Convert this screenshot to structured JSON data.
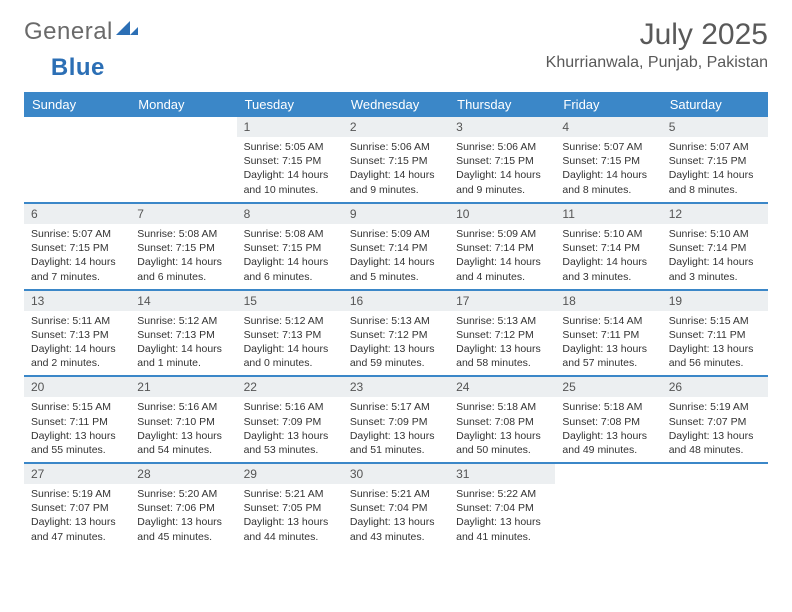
{
  "brand": {
    "part1": "General",
    "part2": "Blue"
  },
  "title": "July 2025",
  "location": "Khurrianwala, Punjab, Pakistan",
  "dayHeaders": [
    "Sunday",
    "Monday",
    "Tuesday",
    "Wednesday",
    "Thursday",
    "Friday",
    "Saturday"
  ],
  "colors": {
    "header_bg": "#3b87c8",
    "header_text": "#ffffff",
    "daynum_bg": "#eceff1",
    "border": "#3b87c8",
    "title": "#595959"
  },
  "weeks": [
    [
      null,
      null,
      {
        "n": "1",
        "l1": "Sunrise: 5:05 AM",
        "l2": "Sunset: 7:15 PM",
        "l3": "Daylight: 14 hours",
        "l4": "and 10 minutes."
      },
      {
        "n": "2",
        "l1": "Sunrise: 5:06 AM",
        "l2": "Sunset: 7:15 PM",
        "l3": "Daylight: 14 hours",
        "l4": "and 9 minutes."
      },
      {
        "n": "3",
        "l1": "Sunrise: 5:06 AM",
        "l2": "Sunset: 7:15 PM",
        "l3": "Daylight: 14 hours",
        "l4": "and 9 minutes."
      },
      {
        "n": "4",
        "l1": "Sunrise: 5:07 AM",
        "l2": "Sunset: 7:15 PM",
        "l3": "Daylight: 14 hours",
        "l4": "and 8 minutes."
      },
      {
        "n": "5",
        "l1": "Sunrise: 5:07 AM",
        "l2": "Sunset: 7:15 PM",
        "l3": "Daylight: 14 hours",
        "l4": "and 8 minutes."
      }
    ],
    [
      {
        "n": "6",
        "l1": "Sunrise: 5:07 AM",
        "l2": "Sunset: 7:15 PM",
        "l3": "Daylight: 14 hours",
        "l4": "and 7 minutes."
      },
      {
        "n": "7",
        "l1": "Sunrise: 5:08 AM",
        "l2": "Sunset: 7:15 PM",
        "l3": "Daylight: 14 hours",
        "l4": "and 6 minutes."
      },
      {
        "n": "8",
        "l1": "Sunrise: 5:08 AM",
        "l2": "Sunset: 7:15 PM",
        "l3": "Daylight: 14 hours",
        "l4": "and 6 minutes."
      },
      {
        "n": "9",
        "l1": "Sunrise: 5:09 AM",
        "l2": "Sunset: 7:14 PM",
        "l3": "Daylight: 14 hours",
        "l4": "and 5 minutes."
      },
      {
        "n": "10",
        "l1": "Sunrise: 5:09 AM",
        "l2": "Sunset: 7:14 PM",
        "l3": "Daylight: 14 hours",
        "l4": "and 4 minutes."
      },
      {
        "n": "11",
        "l1": "Sunrise: 5:10 AM",
        "l2": "Sunset: 7:14 PM",
        "l3": "Daylight: 14 hours",
        "l4": "and 3 minutes."
      },
      {
        "n": "12",
        "l1": "Sunrise: 5:10 AM",
        "l2": "Sunset: 7:14 PM",
        "l3": "Daylight: 14 hours",
        "l4": "and 3 minutes."
      }
    ],
    [
      {
        "n": "13",
        "l1": "Sunrise: 5:11 AM",
        "l2": "Sunset: 7:13 PM",
        "l3": "Daylight: 14 hours",
        "l4": "and 2 minutes."
      },
      {
        "n": "14",
        "l1": "Sunrise: 5:12 AM",
        "l2": "Sunset: 7:13 PM",
        "l3": "Daylight: 14 hours",
        "l4": "and 1 minute."
      },
      {
        "n": "15",
        "l1": "Sunrise: 5:12 AM",
        "l2": "Sunset: 7:13 PM",
        "l3": "Daylight: 14 hours",
        "l4": "and 0 minutes."
      },
      {
        "n": "16",
        "l1": "Sunrise: 5:13 AM",
        "l2": "Sunset: 7:12 PM",
        "l3": "Daylight: 13 hours",
        "l4": "and 59 minutes."
      },
      {
        "n": "17",
        "l1": "Sunrise: 5:13 AM",
        "l2": "Sunset: 7:12 PM",
        "l3": "Daylight: 13 hours",
        "l4": "and 58 minutes."
      },
      {
        "n": "18",
        "l1": "Sunrise: 5:14 AM",
        "l2": "Sunset: 7:11 PM",
        "l3": "Daylight: 13 hours",
        "l4": "and 57 minutes."
      },
      {
        "n": "19",
        "l1": "Sunrise: 5:15 AM",
        "l2": "Sunset: 7:11 PM",
        "l3": "Daylight: 13 hours",
        "l4": "and 56 minutes."
      }
    ],
    [
      {
        "n": "20",
        "l1": "Sunrise: 5:15 AM",
        "l2": "Sunset: 7:11 PM",
        "l3": "Daylight: 13 hours",
        "l4": "and 55 minutes."
      },
      {
        "n": "21",
        "l1": "Sunrise: 5:16 AM",
        "l2": "Sunset: 7:10 PM",
        "l3": "Daylight: 13 hours",
        "l4": "and 54 minutes."
      },
      {
        "n": "22",
        "l1": "Sunrise: 5:16 AM",
        "l2": "Sunset: 7:09 PM",
        "l3": "Daylight: 13 hours",
        "l4": "and 53 minutes."
      },
      {
        "n": "23",
        "l1": "Sunrise: 5:17 AM",
        "l2": "Sunset: 7:09 PM",
        "l3": "Daylight: 13 hours",
        "l4": "and 51 minutes."
      },
      {
        "n": "24",
        "l1": "Sunrise: 5:18 AM",
        "l2": "Sunset: 7:08 PM",
        "l3": "Daylight: 13 hours",
        "l4": "and 50 minutes."
      },
      {
        "n": "25",
        "l1": "Sunrise: 5:18 AM",
        "l2": "Sunset: 7:08 PM",
        "l3": "Daylight: 13 hours",
        "l4": "and 49 minutes."
      },
      {
        "n": "26",
        "l1": "Sunrise: 5:19 AM",
        "l2": "Sunset: 7:07 PM",
        "l3": "Daylight: 13 hours",
        "l4": "and 48 minutes."
      }
    ],
    [
      {
        "n": "27",
        "l1": "Sunrise: 5:19 AM",
        "l2": "Sunset: 7:07 PM",
        "l3": "Daylight: 13 hours",
        "l4": "and 47 minutes."
      },
      {
        "n": "28",
        "l1": "Sunrise: 5:20 AM",
        "l2": "Sunset: 7:06 PM",
        "l3": "Daylight: 13 hours",
        "l4": "and 45 minutes."
      },
      {
        "n": "29",
        "l1": "Sunrise: 5:21 AM",
        "l2": "Sunset: 7:05 PM",
        "l3": "Daylight: 13 hours",
        "l4": "and 44 minutes."
      },
      {
        "n": "30",
        "l1": "Sunrise: 5:21 AM",
        "l2": "Sunset: 7:04 PM",
        "l3": "Daylight: 13 hours",
        "l4": "and 43 minutes."
      },
      {
        "n": "31",
        "l1": "Sunrise: 5:22 AM",
        "l2": "Sunset: 7:04 PM",
        "l3": "Daylight: 13 hours",
        "l4": "and 41 minutes."
      },
      null,
      null
    ]
  ]
}
